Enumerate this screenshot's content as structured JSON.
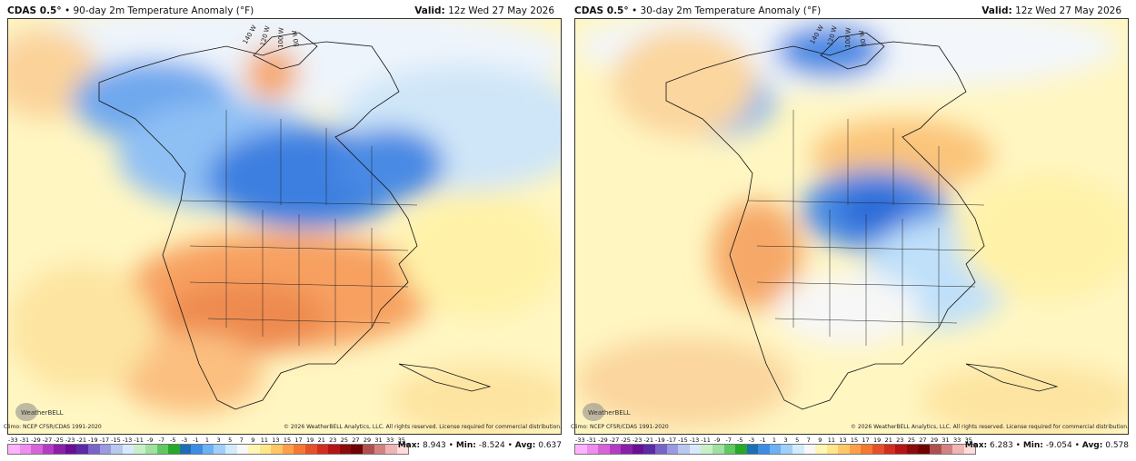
{
  "colorbar_ticks": [
    "-33",
    "-31",
    "-29",
    "-27",
    "-25",
    "-23",
    "-21",
    "-19",
    "-17",
    "-15",
    "-13",
    "-11",
    "-9",
    "-7",
    "-5",
    "-3",
    "-1",
    "1",
    "3",
    "5",
    "7",
    "9",
    "11",
    "13",
    "15",
    "17",
    "19",
    "21",
    "23",
    "25",
    "27",
    "29",
    "31",
    "33",
    "35"
  ],
  "colorbar_colors": [
    "#ffb3ff",
    "#f08cf0",
    "#d863d8",
    "#b43cc4",
    "#8a1fa8",
    "#6a0f94",
    "#5a2aa8",
    "#7a64c8",
    "#9a9ae0",
    "#b8c8f0",
    "#d8e8ff",
    "#c8f0c8",
    "#a0e0a0",
    "#60c860",
    "#28a828",
    "#1e6eb4",
    "#3c8ce6",
    "#6eb0f5",
    "#a0d0fa",
    "#d2ecff",
    "#f8f8f8",
    "#fff6b4",
    "#ffe68c",
    "#ffc864",
    "#ffa046",
    "#f57832",
    "#e65028",
    "#d22d1e",
    "#b41414",
    "#8c0a0a",
    "#6e0000",
    "#ae5050",
    "#d28282",
    "#f0b4b4",
    "#ffdcdc"
  ],
  "panels": [
    {
      "model": "CDAS 0.5°",
      "title": "• 90-day 2m Temperature Anomaly (°F)",
      "valid_label": "Valid:",
      "valid_value": "12z Wed 27 May 2026",
      "climo": "Climo: NCEP CFSR/CDAS 1991-2020",
      "copyright": "© 2026 WeatherBELL Analytics, LLC. All rights reserved. License required for commercial distribution.",
      "max_label": "Max:",
      "max_value": "8.943",
      "min_label": "Min:",
      "min_value": "-8.524",
      "avg_label": "Avg:",
      "avg_value": "0.637",
      "logo_text": "WeatherBELL",
      "lon_labels": [
        "140 W",
        "120 W",
        "100 W",
        "80 W"
      ]
    },
    {
      "model": "CDAS 0.5°",
      "title": "• 30-day 2m Temperature Anomaly (°F)",
      "valid_label": "Valid:",
      "valid_value": "12z Wed 27 May 2026",
      "climo": "Climo: NCEP CFSR/CDAS 1991-2020",
      "copyright": "© 2026 WeatherBELL Analytics, LLC. All rights reserved. License required for commercial distribution.",
      "max_label": "Max:",
      "max_value": "6.283",
      "min_label": "Min:",
      "min_value": "-9.054",
      "avg_label": "Avg:",
      "avg_value": "0.578",
      "logo_text": "WeatherBELL",
      "lon_labels": [
        "140 W",
        "120 W",
        "100 W",
        "80 W"
      ]
    }
  ]
}
